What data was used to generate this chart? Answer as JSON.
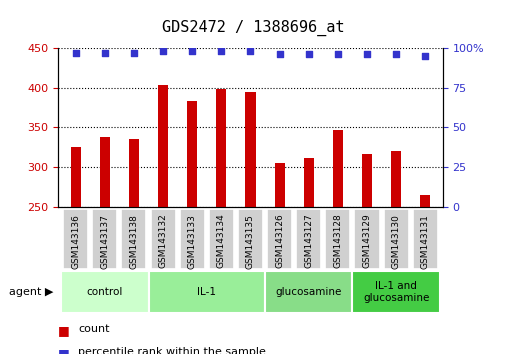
{
  "title": "GDS2472 / 1388696_at",
  "categories": [
    "GSM143136",
    "GSM143137",
    "GSM143138",
    "GSM143132",
    "GSM143133",
    "GSM143134",
    "GSM143135",
    "GSM143126",
    "GSM143127",
    "GSM143128",
    "GSM143129",
    "GSM143130",
    "GSM143131"
  ],
  "counts": [
    325,
    338,
    335,
    403,
    383,
    398,
    395,
    305,
    312,
    347,
    317,
    320,
    265
  ],
  "percentiles": [
    97,
    97,
    97,
    98,
    98,
    98,
    98,
    96,
    96,
    96,
    96,
    96,
    95
  ],
  "ylim_left": [
    250,
    450
  ],
  "ylim_right": [
    0,
    100
  ],
  "yticks_left": [
    250,
    300,
    350,
    400,
    450
  ],
  "yticks_right": [
    0,
    25,
    50,
    75,
    100
  ],
  "bar_color": "#cc0000",
  "dot_color": "#3333cc",
  "groups": [
    {
      "label": "control",
      "start": 0,
      "end": 3,
      "color": "#ccffcc"
    },
    {
      "label": "IL-1",
      "start": 3,
      "end": 7,
      "color": "#99ee99"
    },
    {
      "label": "glucosamine",
      "start": 7,
      "end": 10,
      "color": "#88dd88"
    },
    {
      "label": "IL-1 and\nglucosamine",
      "start": 10,
      "end": 13,
      "color": "#44cc44"
    }
  ],
  "legend_count_label": "count",
  "legend_percentile_label": "percentile rank within the sample",
  "bar_width": 0.35,
  "tick_label_fontsize": 6.5,
  "title_fontsize": 11
}
